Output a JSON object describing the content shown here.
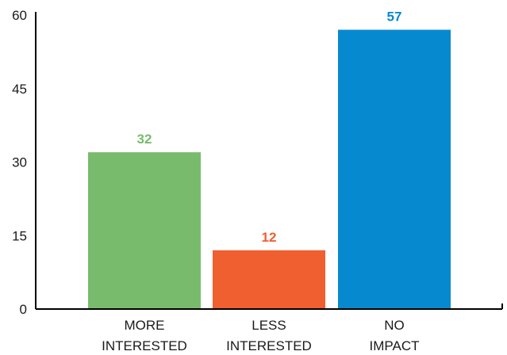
{
  "chart_data": {
    "type": "bar",
    "categories": [
      [
        "MORE",
        "INTERESTED"
      ],
      [
        "LESS",
        "INTERESTED"
      ],
      [
        "NO",
        "IMPACT"
      ]
    ],
    "values": [
      32,
      12,
      57
    ],
    "data_labels": [
      "32",
      "12",
      "57"
    ],
    "colors": [
      "#78bb6c",
      "#f05f2f",
      "#0789d0"
    ],
    "yticks": [
      "0",
      "15",
      "30",
      "45",
      "60"
    ],
    "ylim": [
      0,
      60
    ],
    "grid": false,
    "legend": "none"
  }
}
